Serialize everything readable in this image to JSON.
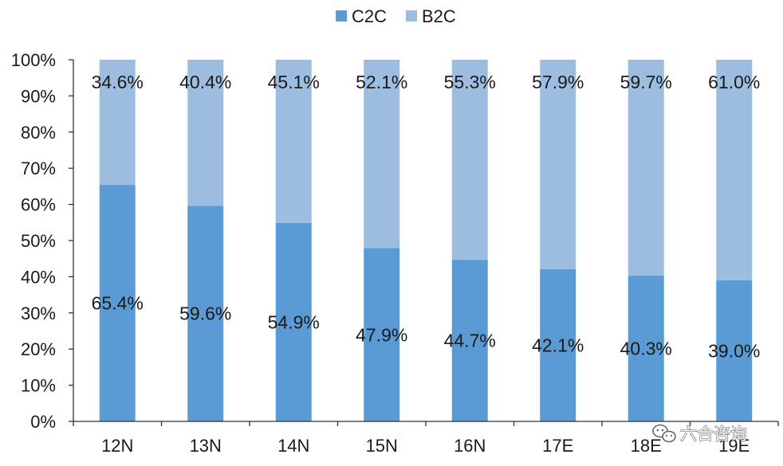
{
  "chart_data": {
    "type": "bar",
    "stacked": true,
    "categories": [
      "12N",
      "13N",
      "14N",
      "15N",
      "16N",
      "17E",
      "18E",
      "19E"
    ],
    "series": [
      {
        "name": "C2C",
        "color": "#5b9bd5",
        "values": [
          65.4,
          59.6,
          54.9,
          47.9,
          44.7,
          42.1,
          40.3,
          39.0
        ],
        "labels": [
          "65.4%",
          "59.6%",
          "54.9%",
          "47.9%",
          "44.7%",
          "42.1%",
          "40.3%",
          "39.0%"
        ]
      },
      {
        "name": "B2C",
        "color": "#9dbde0",
        "values": [
          34.6,
          40.4,
          45.1,
          52.1,
          55.3,
          57.9,
          59.7,
          61.0
        ],
        "labels": [
          "34.6%",
          "40.4%",
          "45.1%",
          "52.1%",
          "55.3%",
          "57.9%",
          "59.7%",
          "61.0%"
        ]
      }
    ],
    "ylim": [
      0,
      100
    ],
    "yticks": [
      "0%",
      "10%",
      "20%",
      "30%",
      "40%",
      "50%",
      "60%",
      "70%",
      "80%",
      "90%",
      "100%"
    ],
    "legend_position": "top-center",
    "grid": false
  },
  "watermark": {
    "text": "六合咨询",
    "icon": "wechat-icon"
  }
}
